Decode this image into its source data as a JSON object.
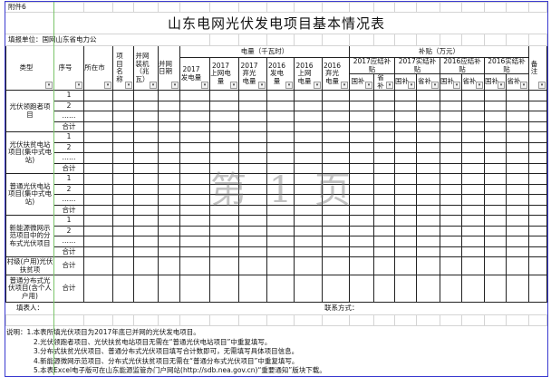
{
  "attachment_label": "附件6",
  "title": "山东电网光伏发电项目基本情况表",
  "fill_unit": "填报单位：国网山东省电力公",
  "header": {
    "type": "类型",
    "seq": "序号",
    "city": "所在市",
    "project_name": "项目名称",
    "capacity": "并网装机（兆瓦）",
    "grid_date": "并网日期",
    "electricity_group": "电量（千瓦时）",
    "electricity_cols": [
      "2017发电量",
      "2017上网电量",
      "2017弃光电量",
      "2016发电量",
      "2016上网电量",
      "2016弃光电量"
    ],
    "subsidy_group": "补贴（万元）",
    "subsidy_cols": [
      "2017应结补贴",
      "2017实结补贴",
      "2016应结补贴",
      "2016实结补贴"
    ],
    "subsidy_sub": [
      "国补",
      "省补"
    ],
    "remark": "备注"
  },
  "groups": [
    {
      "name": "光伏领跑者项目",
      "rows": [
        "1",
        "2",
        "……",
        "合计"
      ]
    },
    {
      "name": "光伏扶贫电站项目(集中式电站)",
      "rows": [
        "1",
        "2",
        "……",
        "合计"
      ]
    },
    {
      "name": "普通光伏电站项目(集中式电站)",
      "rows": [
        "1",
        "2",
        "……",
        "合计"
      ]
    },
    {
      "name": "新能源微网示范项目中的分布式光伏项目",
      "rows": [
        "1",
        "2",
        "……",
        "合计"
      ]
    },
    {
      "name": "村级(户用)光伏扶贫项",
      "rows": [
        "合计"
      ]
    },
    {
      "name": "普通分布式光伏项目(含个人户用)",
      "rows": [
        "合计"
      ]
    }
  ],
  "filler_label": "填表人：",
  "contact_label": "联系方式：",
  "notes": [
    "说明：1.本表所填光伏项目为2017年底已并网的光伏发电项目。",
    "2.光伏领跑者项目、光伏扶贫电站项目无需在“普通光伏电站项目”中重复填写。",
    "3.分布式扶贫光伏项目、普通分布式光伏项目填写合计数即可，无需填写具体项目信息。",
    "4.新能源微网示范项目、分布式光伏扶贫项目无需在“普通分布式光伏项目”中重复填写。",
    "5.本表Excel电子版可在山东能源监管办门户网站(http://sdb.nea.gov.cn)“重要通知”版块下载。"
  ],
  "watermark": "第 1 页",
  "colors": {
    "page_border": "#3a3ad0",
    "freeze_line": "#7ac46a"
  }
}
